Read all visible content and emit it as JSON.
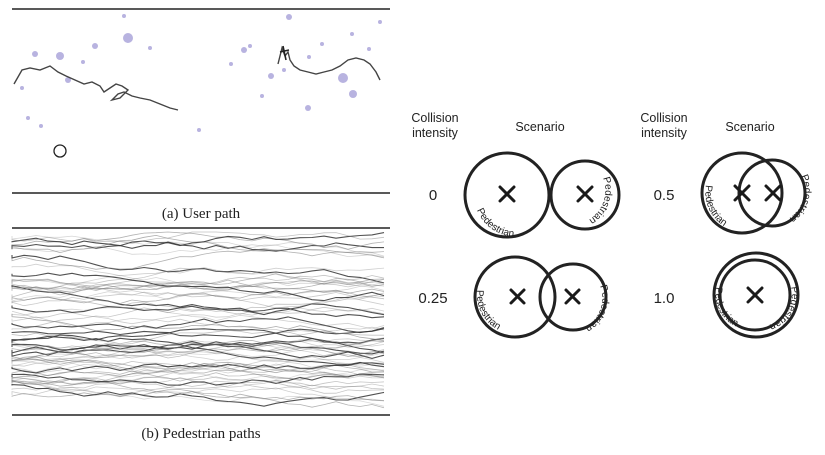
{
  "panel_a": {
    "caption": "(a) User path"
  },
  "panel_b": {
    "caption": "(b) Pedestrian paths"
  },
  "table": {
    "header_intensity_line1": "Collision",
    "header_intensity_line2": "intensity",
    "header_scenario": "Scenario",
    "pedestrian_label": "Pedestrian",
    "rows": [
      {
        "intensity": "0"
      },
      {
        "intensity": "0.25"
      },
      {
        "intensity": "0.5"
      },
      {
        "intensity": "1.0"
      }
    ]
  },
  "colors": {
    "dots": "#b8b3e0",
    "lines": "#222222",
    "paths": "#555555"
  }
}
